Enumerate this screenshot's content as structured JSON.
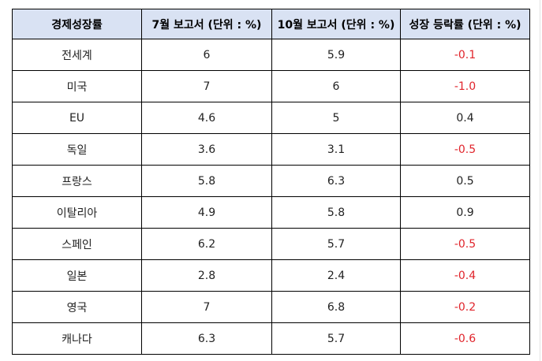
{
  "table": {
    "headers": [
      "경제성장률",
      "7월 보고서 (단위 : %)",
      "10월 보고서 (단위 : %)",
      "성장 등락률 (단위 : %)"
    ],
    "rows": [
      [
        "전세계",
        "6",
        "5.9",
        "-0.1"
      ],
      [
        "미국",
        "7",
        "6",
        "-1.0"
      ],
      [
        "EU",
        "4.6",
        "5",
        "0.4"
      ],
      [
        "독일",
        "3.6",
        "3.1",
        "-0.5"
      ],
      [
        "프랑스",
        "5.8",
        "6.3",
        "0.5"
      ],
      [
        "이탈리아",
        "4.9",
        "5.8",
        "0.9"
      ],
      [
        "스페인",
        "6.2",
        "5.7",
        "-0.5"
      ],
      [
        "일본",
        "2.8",
        "2.4",
        "-0.4"
      ],
      [
        "영국",
        "7",
        "6.8",
        "-0.2"
      ],
      [
        "캐나다",
        "6.3",
        "5.7",
        "-0.6"
      ]
    ]
  },
  "colors": {
    "header_bg": "#d9e2f3",
    "negative_text": "#e0242b",
    "border": "#000000"
  }
}
